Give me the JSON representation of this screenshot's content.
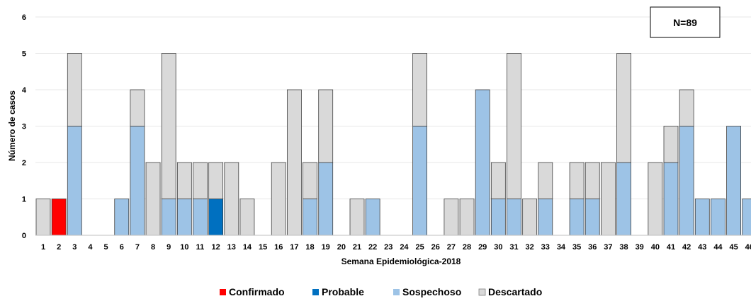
{
  "chart_data": {
    "type": "bar",
    "stacked": true,
    "xlabel": "Semana Epidemiológica-2018",
    "ylabel": "Número de casos",
    "ylim": [
      0,
      6
    ],
    "yticks": [
      "0",
      "1",
      "2",
      "3",
      "4",
      "5",
      "6"
    ],
    "grid": true,
    "annotation": "N=89",
    "legend_position": "bottom",
    "categories": [
      "1",
      "2",
      "3",
      "4",
      "5",
      "6",
      "7",
      "8",
      "9",
      "10",
      "11",
      "12",
      "13",
      "14",
      "15",
      "16",
      "17",
      "18",
      "19",
      "20",
      "21",
      "22",
      "23",
      "24",
      "25",
      "26",
      "27",
      "28",
      "29",
      "30",
      "31",
      "32",
      "33",
      "34",
      "35",
      "36",
      "37",
      "38",
      "39",
      "40",
      "41",
      "42",
      "43",
      "44",
      "45",
      "46"
    ],
    "series": [
      {
        "name": "Confirmado",
        "color": "#ff0000",
        "values": [
          0,
          1,
          0,
          0,
          0,
          0,
          0,
          0,
          0,
          0,
          0,
          0,
          0,
          0,
          0,
          0,
          0,
          0,
          0,
          0,
          0,
          0,
          0,
          0,
          0,
          0,
          0,
          0,
          0,
          0,
          0,
          0,
          0,
          0,
          0,
          0,
          0,
          0,
          0,
          0,
          0,
          0,
          0,
          0,
          0,
          0
        ]
      },
      {
        "name": "Probable",
        "color": "#0070c0",
        "values": [
          0,
          0,
          0,
          0,
          0,
          0,
          0,
          0,
          0,
          0,
          0,
          1,
          0,
          0,
          0,
          0,
          0,
          0,
          0,
          0,
          0,
          0,
          0,
          0,
          0,
          0,
          0,
          0,
          0,
          0,
          0,
          0,
          0,
          0,
          0,
          0,
          0,
          0,
          0,
          0,
          0,
          0,
          0,
          0,
          0,
          0
        ]
      },
      {
        "name": "Sospechoso",
        "color": "#9dc3e6",
        "values": [
          0,
          0,
          3,
          0,
          0,
          1,
          3,
          0,
          1,
          1,
          1,
          0,
          0,
          0,
          0,
          0,
          0,
          1,
          2,
          0,
          0,
          1,
          0,
          0,
          3,
          0,
          0,
          0,
          4,
          1,
          1,
          0,
          1,
          0,
          1,
          1,
          0,
          2,
          0,
          0,
          2,
          3,
          1,
          1,
          3,
          1
        ]
      },
      {
        "name": "Descartado",
        "color": "#d9d9d9",
        "values": [
          1,
          0,
          2,
          0,
          0,
          0,
          1,
          2,
          4,
          1,
          1,
          1,
          2,
          1,
          0,
          2,
          4,
          1,
          2,
          0,
          1,
          0,
          0,
          0,
          2,
          0,
          1,
          1,
          0,
          1,
          4,
          1,
          1,
          0,
          1,
          1,
          2,
          3,
          0,
          2,
          1,
          1,
          0,
          0,
          0,
          0
        ]
      }
    ]
  }
}
